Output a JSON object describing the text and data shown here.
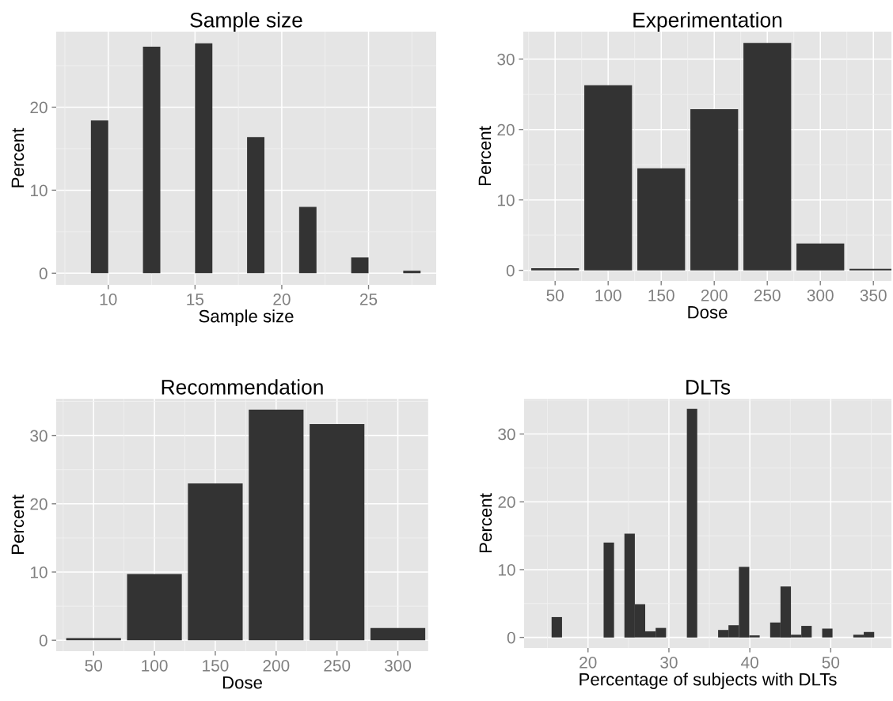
{
  "chart_data": [
    {
      "type": "histogram",
      "title": "Sample size",
      "xlabel": "Sample size",
      "ylabel": "Percent",
      "color": "#333333",
      "bins": [
        9,
        10,
        11,
        12,
        13,
        14,
        15,
        16,
        17,
        18,
        19,
        20,
        21,
        22,
        23,
        24,
        25,
        26,
        27,
        28
      ],
      "values": [
        18.4,
        0,
        0,
        27.3,
        0,
        0,
        27.7,
        0,
        0,
        16.4,
        0,
        0,
        8.0,
        0,
        0,
        1.9,
        0,
        0,
        0.3
      ],
      "xlim": [
        7,
        28.9
      ],
      "ylim": [
        -1.4,
        29.1
      ],
      "xticks": [
        10,
        15,
        20,
        25
      ],
      "yticks": [
        0,
        10,
        20
      ],
      "grid": true
    },
    {
      "type": "bar",
      "title": "Experimentation",
      "xlabel": "Dose",
      "ylabel": "Percent",
      "color": "#333333",
      "x": [
        50,
        100,
        150,
        200,
        250,
        300,
        350
      ],
      "values": [
        0.3,
        26.3,
        14.5,
        22.9,
        32.3,
        3.8,
        0.2
      ],
      "xlim": [
        20,
        367
      ],
      "ylim": [
        -1.5,
        33.9
      ],
      "xticks": [
        50,
        100,
        150,
        200,
        250,
        300,
        350
      ],
      "yticks": [
        0,
        10,
        20,
        30
      ],
      "grid": true
    },
    {
      "type": "bar",
      "title": "Recommendation",
      "xlabel": "Dose",
      "ylabel": "Percent",
      "color": "#333333",
      "x": [
        50,
        100,
        150,
        200,
        250,
        300
      ],
      "values": [
        0.3,
        9.7,
        23.0,
        33.8,
        31.7,
        1.8
      ],
      "xlim": [
        19.3,
        325
      ],
      "ylim": [
        -1.6,
        35.4
      ],
      "xticks": [
        50,
        100,
        150,
        200,
        250,
        300
      ],
      "yticks": [
        0,
        10,
        20,
        30
      ],
      "grid": true
    },
    {
      "type": "histogram",
      "title": "DLTs",
      "xlabel": "Percentage of subjects with DLTs",
      "ylabel": "Percent",
      "color": "#333333",
      "bins": [
        15.5,
        16.79,
        18.07,
        19.36,
        20.64,
        21.93,
        23.22,
        24.5,
        25.79,
        27.07,
        28.36,
        29.65,
        30.93,
        32.22,
        33.5,
        34.79,
        36.08,
        37.36,
        38.65,
        39.93,
        41.22,
        42.51,
        43.79,
        45.08,
        46.36,
        47.65,
        48.94,
        50.22,
        51.51,
        52.79,
        54.08,
        55.37
      ],
      "values": [
        3.0,
        0,
        0,
        0,
        0,
        14.0,
        0,
        15.3,
        4.9,
        0.9,
        1.4,
        0,
        0,
        33.7,
        0,
        0,
        1.1,
        1.8,
        10.4,
        0.3,
        0,
        2.2,
        7.5,
        0.4,
        1.7,
        0,
        1.3,
        0,
        0,
        0.4,
        0.8
      ],
      "xlim": [
        12.1,
        57.5
      ],
      "ylim": [
        -1.56,
        35.2
      ],
      "xticks": [
        20,
        30,
        40,
        50
      ],
      "yticks": [
        0,
        10,
        20,
        30
      ],
      "grid": true
    }
  ]
}
